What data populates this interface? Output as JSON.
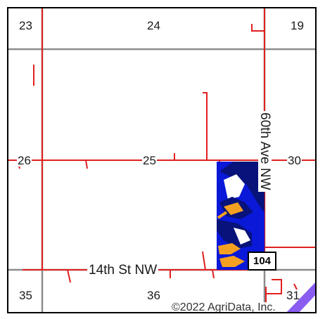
{
  "map": {
    "sections": [
      {
        "id": "s23",
        "label": "23"
      },
      {
        "id": "s24",
        "label": "24"
      },
      {
        "id": "s19",
        "label": "19"
      },
      {
        "id": "s26",
        "label": "26"
      },
      {
        "id": "s25",
        "label": "25"
      },
      {
        "id": "s30",
        "label": "30"
      },
      {
        "id": "s35",
        "label": "35"
      },
      {
        "id": "s36",
        "label": "36"
      },
      {
        "id": "s31",
        "label": "31"
      }
    ],
    "roads": {
      "horizontal": "14th St NW",
      "vertical": "60th Ave NW"
    },
    "highway_shield": "104",
    "copyright": "©2022 AgriData, Inc.",
    "colors": {
      "section_line": "#888888",
      "road_red": "#e02020",
      "field_blue": "#0a18d8",
      "field_navy": "#07127a",
      "field_orange": "#f5a020",
      "field_white": "#ffffff",
      "purple_strip": "#8a5cf0"
    }
  }
}
